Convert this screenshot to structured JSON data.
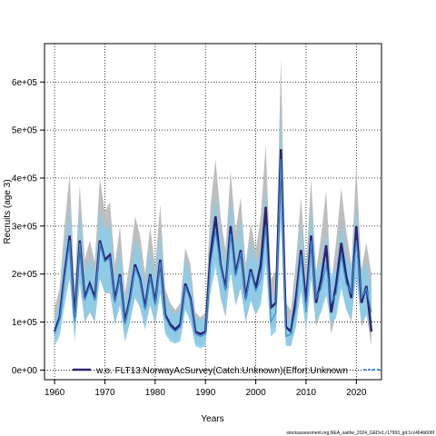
{
  "chart_data": {
    "type": "line",
    "title": "",
    "xlabel": "Years",
    "ylabel": "Recruits (age 3)",
    "xlim": [
      1958,
      2025
    ],
    "ylim": [
      -20000,
      680000
    ],
    "xticks": [
      1960,
      1970,
      1980,
      1990,
      2000,
      2010,
      2020
    ],
    "yticks": [
      0,
      100000,
      200000,
      300000,
      400000,
      500000,
      600000
    ],
    "ytick_labels": [
      "0e+00",
      "1e+05",
      "2e+05",
      "3e+05",
      "4e+05",
      "5e+05",
      "6e+05"
    ],
    "grid": true,
    "legend_position": "bottom",
    "legend": [
      "w.o. FLT13:NorwayAcSurvey(Catch:Unknown)(Effort:Unknown"
    ],
    "footer": "stockassessment.org,NEA_saithe_2024_GEDv1,r17993_git:1cc464b606f",
    "colors": {
      "base_band": "#bebebe",
      "base_line": "#2e2472",
      "alt_band": "#87ceeb",
      "alt_line": "#3a8fd8"
    },
    "x": [
      1960,
      1961,
      1962,
      1963,
      1964,
      1965,
      1966,
      1967,
      1968,
      1969,
      1970,
      1971,
      1972,
      1973,
      1974,
      1975,
      1976,
      1977,
      1978,
      1979,
      1980,
      1981,
      1982,
      1983,
      1984,
      1985,
      1986,
      1987,
      1988,
      1989,
      1990,
      1991,
      1992,
      1993,
      1994,
      1995,
      1996,
      1997,
      1998,
      1999,
      2000,
      2001,
      2002,
      2003,
      2004,
      2005,
      2006,
      2007,
      2008,
      2009,
      2010,
      2011,
      2012,
      2013,
      2014,
      2015,
      2016,
      2017,
      2018,
      2019,
      2020,
      2021,
      2022,
      2023
    ],
    "series": [
      {
        "name": "",
        "values": [
          80000,
          110000,
          200000,
          280000,
          110000,
          270000,
          150000,
          180000,
          150000,
          270000,
          230000,
          240000,
          145000,
          200000,
          100000,
          150000,
          220000,
          190000,
          130000,
          200000,
          140000,
          230000,
          115000,
          95000,
          85000,
          95000,
          180000,
          150000,
          80000,
          75000,
          80000,
          240000,
          320000,
          220000,
          170000,
          300000,
          200000,
          250000,
          150000,
          210000,
          170000,
          220000,
          340000,
          130000,
          140000,
          460000,
          90000,
          80000,
          150000,
          250000,
          140000,
          280000,
          140000,
          190000,
          260000,
          120000,
          180000,
          265000,
          195000,
          150000,
          300000,
          140000,
          175000,
          80000
        ],
        "lower": [
          60000,
          80000,
          140000,
          190000,
          70000,
          180000,
          100000,
          120000,
          100000,
          190000,
          160000,
          160000,
          95000,
          135000,
          60000,
          100000,
          150000,
          130000,
          85000,
          135000,
          95000,
          160000,
          80000,
          65000,
          60000,
          65000,
          130000,
          105000,
          55000,
          50000,
          55000,
          170000,
          230000,
          150000,
          110000,
          210000,
          135000,
          170000,
          100000,
          145000,
          115000,
          150000,
          240000,
          85000,
          90000,
          310000,
          55000,
          50000,
          95000,
          165000,
          90000,
          190000,
          90000,
          125000,
          175000,
          75000,
          120000,
          180000,
          130000,
          100000,
          200000,
          90000,
          115000,
          50000
        ],
        "upper": [
          130000,
          170000,
          300000,
          410000,
          170000,
          385000,
          230000,
          270000,
          225000,
          400000,
          330000,
          350000,
          220000,
          300000,
          160000,
          230000,
          320000,
          280000,
          200000,
          300000,
          215000,
          345000,
          170000,
          140000,
          125000,
          140000,
          255000,
          220000,
          120000,
          110000,
          120000,
          340000,
          440000,
          320000,
          250000,
          415000,
          290000,
          360000,
          220000,
          305000,
          250000,
          320000,
          470000,
          190000,
          205000,
          650000,
          140000,
          125000,
          230000,
          360000,
          210000,
          400000,
          205000,
          280000,
          375000,
          180000,
          270000,
          380000,
          290000,
          220000,
          425000,
          210000,
          265000,
          200000
        ]
      },
      {
        "name": "w.o. FLT13:NorwayAcSurvey(Catch:Unknown)(Effort:Unknown",
        "values": [
          75000,
          105000,
          190000,
          270000,
          100000,
          265000,
          145000,
          175000,
          145000,
          265000,
          225000,
          235000,
          140000,
          195000,
          95000,
          145000,
          215000,
          185000,
          125000,
          195000,
          135000,
          225000,
          110000,
          90000,
          80000,
          90000,
          175000,
          145000,
          75000,
          70000,
          75000,
          220000,
          290000,
          215000,
          165000,
          285000,
          195000,
          245000,
          145000,
          205000,
          165000,
          190000,
          300000,
          100000,
          120000,
          440000,
          70000,
          75000,
          130000,
          240000,
          120000,
          270000,
          150000,
          170000,
          220000,
          140000,
          160000,
          240000,
          180000,
          160000,
          270000,
          150000,
          170000,
          120000
        ],
        "lower": [
          50000,
          70000,
          135000,
          200000,
          60000,
          190000,
          100000,
          125000,
          100000,
          195000,
          160000,
          165000,
          95000,
          140000,
          60000,
          100000,
          155000,
          130000,
          85000,
          140000,
          95000,
          160000,
          75000,
          60000,
          55000,
          60000,
          125000,
          100000,
          50000,
          45000,
          50000,
          160000,
          215000,
          155000,
          115000,
          205000,
          135000,
          175000,
          100000,
          145000,
          115000,
          135000,
          220000,
          70000,
          80000,
          320000,
          50000,
          50000,
          90000,
          170000,
          80000,
          195000,
          100000,
          120000,
          155000,
          95000,
          110000,
          170000,
          125000,
          105000,
          195000,
          100000,
          115000,
          80000
        ],
        "upper": [
          105000,
          145000,
          255000,
          345000,
          150000,
          340000,
          200000,
          235000,
          200000,
          335000,
          290000,
          305000,
          190000,
          255000,
          140000,
          195000,
          275000,
          245000,
          175000,
          255000,
          185000,
          290000,
          155000,
          130000,
          115000,
          130000,
          235000,
          195000,
          110000,
          105000,
          110000,
          285000,
          365000,
          280000,
          220000,
          360000,
          255000,
          315000,
          200000,
          270000,
          220000,
          250000,
          385000,
          140000,
          170000,
          560000,
          100000,
          110000,
          180000,
          310000,
          170000,
          345000,
          205000,
          225000,
          290000,
          195000,
          215000,
          310000,
          235000,
          215000,
          345000,
          200000,
          225000,
          165000
        ]
      }
    ]
  }
}
